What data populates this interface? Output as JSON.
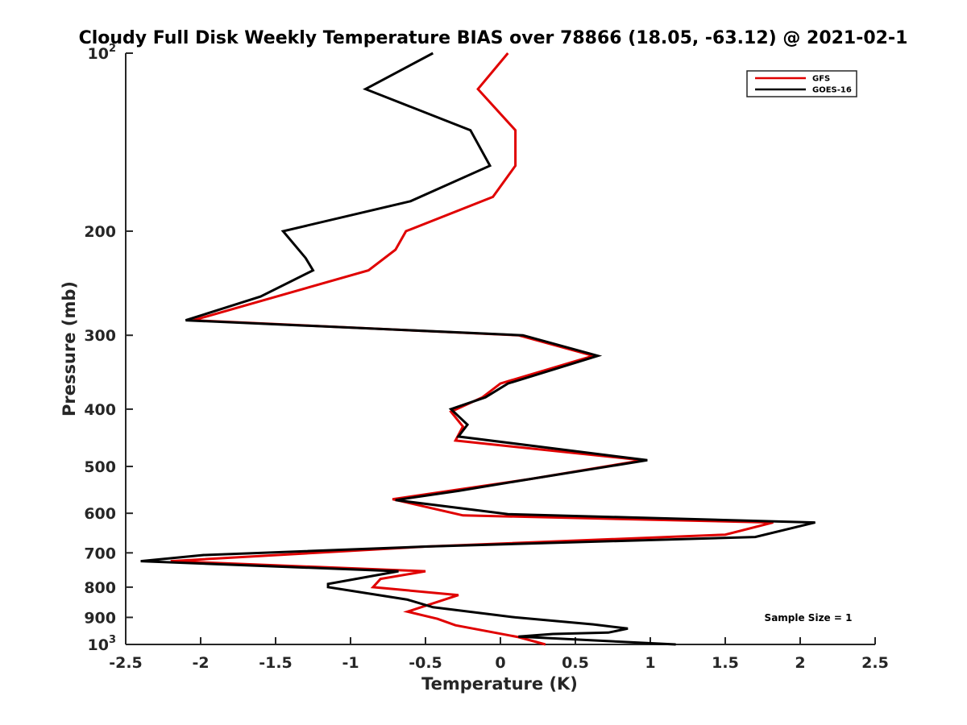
{
  "chart_data": {
    "type": "line",
    "title": "Cloudy Full Disk Weekly Temperature BIAS over 78866 (18.05, -63.12) @ 2021-02-1",
    "xlabel": "Temperature (K)",
    "ylabel": "Pressure (mb)",
    "xlim": [
      -2.5,
      2.5
    ],
    "ylim": [
      100,
      1000
    ],
    "yscale": "log",
    "y_reversed": true,
    "xticks": [
      "-2.5",
      "-2",
      "-1.5",
      "-1",
      "-0.5",
      "0",
      "0.5",
      "1",
      "1.5",
      "2",
      "2.5"
    ],
    "xtick_values": [
      -2.5,
      -2,
      -1.5,
      -1,
      -0.5,
      0,
      0.5,
      1,
      1.5,
      2,
      2.5
    ],
    "yticks": [
      {
        "value": 100,
        "base": "10",
        "exp": "2"
      },
      {
        "value": 200,
        "label": "200"
      },
      {
        "value": 300,
        "label": "300"
      },
      {
        "value": 400,
        "label": "400"
      },
      {
        "value": 500,
        "label": "500"
      },
      {
        "value": 600,
        "label": "600"
      },
      {
        "value": 700,
        "label": "700"
      },
      {
        "value": 800,
        "label": "800"
      },
      {
        "value": 900,
        "label": "900"
      },
      {
        "value": 1000,
        "base": "10",
        "exp": "3"
      }
    ],
    "grid": false,
    "legend_position": "top-right",
    "series": [
      {
        "name": "GFS",
        "color": "#e00000",
        "points": [
          [
            0.05,
            100
          ],
          [
            -0.15,
            115
          ],
          [
            0.1,
            135
          ],
          [
            0.1,
            155
          ],
          [
            -0.05,
            175
          ],
          [
            -0.63,
            200
          ],
          [
            -0.7,
            215
          ],
          [
            -0.88,
            233
          ],
          [
            -2.05,
            283
          ],
          [
            0.12,
            300
          ],
          [
            0.62,
            325
          ],
          [
            0.0,
            362
          ],
          [
            -0.12,
            382
          ],
          [
            -0.33,
            404
          ],
          [
            -0.25,
            428
          ],
          [
            -0.3,
            452
          ],
          [
            0.95,
            488
          ],
          [
            0.2,
            525
          ],
          [
            -0.72,
            568
          ],
          [
            -0.25,
            605
          ],
          [
            1.82,
            622
          ],
          [
            1.5,
            652
          ],
          [
            -0.5,
            683
          ],
          [
            -2.2,
            723
          ],
          [
            -0.5,
            752
          ],
          [
            -0.8,
            775
          ],
          [
            -0.85,
            800
          ],
          [
            -0.28,
            825
          ],
          [
            -0.62,
            880
          ],
          [
            -0.42,
            905
          ],
          [
            -0.3,
            928
          ],
          [
            0.12,
            972
          ],
          [
            0.3,
            1000
          ]
        ]
      },
      {
        "name": "GOES-16",
        "color": "#000000",
        "points": [
          [
            -0.45,
            100
          ],
          [
            -0.9,
            115
          ],
          [
            -0.2,
            135
          ],
          [
            -0.07,
            155
          ],
          [
            -0.6,
            178
          ],
          [
            -1.45,
            200
          ],
          [
            -1.3,
            222
          ],
          [
            -1.25,
            233
          ],
          [
            -1.6,
            258
          ],
          [
            -2.1,
            283
          ],
          [
            0.15,
            300
          ],
          [
            0.65,
            325
          ],
          [
            0.05,
            362
          ],
          [
            -0.1,
            382
          ],
          [
            -0.33,
            400
          ],
          [
            -0.22,
            425
          ],
          [
            -0.28,
            445
          ],
          [
            0.98,
            488
          ],
          [
            0.2,
            525
          ],
          [
            -0.28,
            550
          ],
          [
            -0.7,
            570
          ],
          [
            0.05,
            602
          ],
          [
            2.1,
            622
          ],
          [
            1.7,
            658
          ],
          [
            -0.5,
            683
          ],
          [
            -1.98,
            706
          ],
          [
            -2.4,
            723
          ],
          [
            -0.68,
            752
          ],
          [
            -1.15,
            790
          ],
          [
            -1.15,
            800
          ],
          [
            -0.62,
            840
          ],
          [
            -0.45,
            865
          ],
          [
            0.1,
            900
          ],
          [
            0.62,
            925
          ],
          [
            0.85,
            940
          ],
          [
            0.72,
            955
          ],
          [
            0.35,
            960
          ],
          [
            0.12,
            970
          ],
          [
            1.17,
            1000
          ]
        ]
      }
    ],
    "annotations": [
      {
        "text": "Sample Size = 1"
      }
    ]
  }
}
